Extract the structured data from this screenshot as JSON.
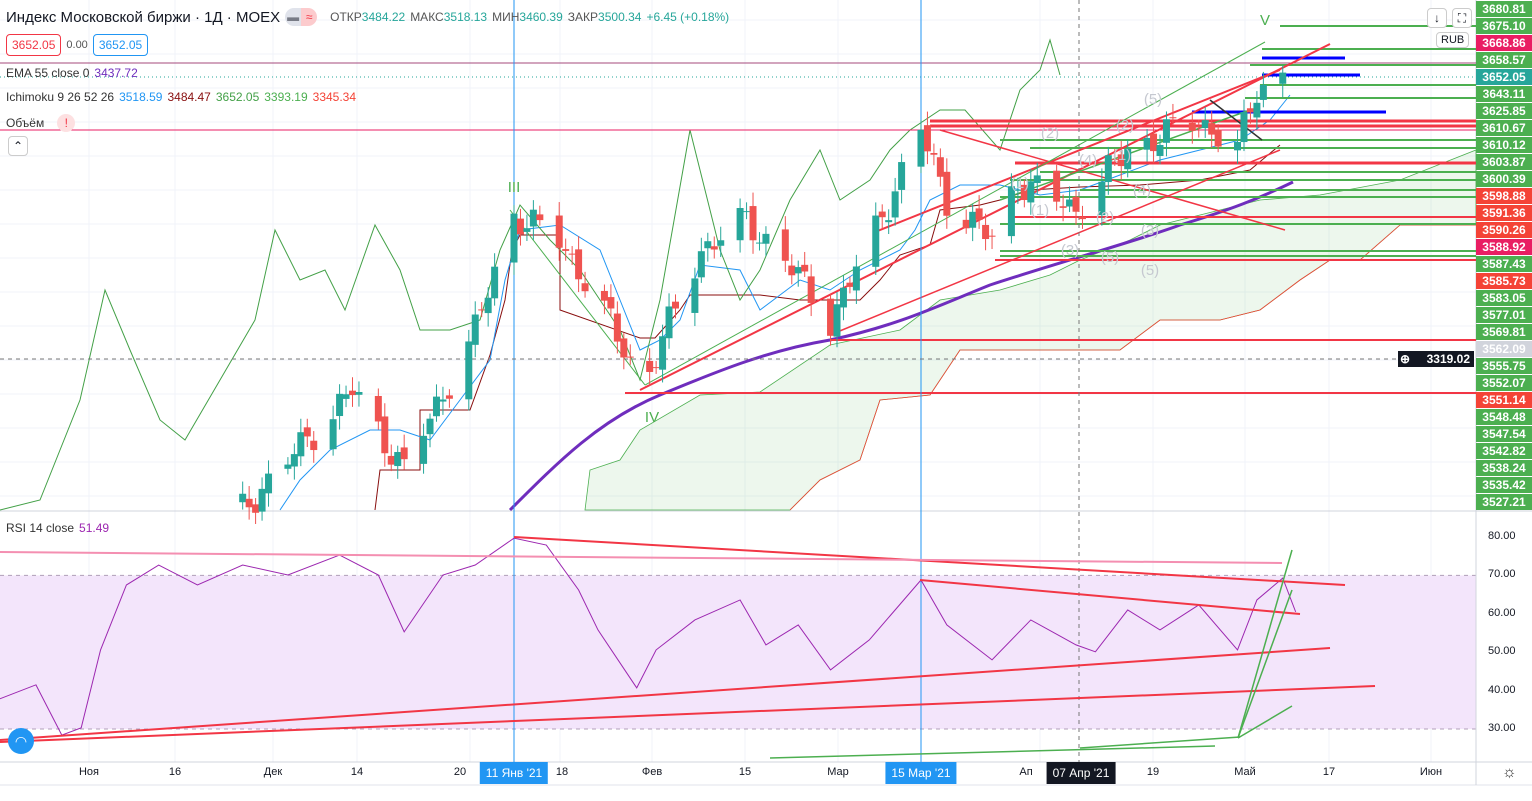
{
  "header": {
    "title": "Индекс Московской биржи · 1Д · MOEX",
    "open_label": "ОТКР",
    "open": "3484.22",
    "high_label": "МАКС",
    "high": "3518.13",
    "low_label": "МИН",
    "low": "3460.39",
    "close_label": "ЗАКР",
    "close": "3500.34",
    "change": "+6.45 (+0.18%)",
    "bid": "3652.05",
    "spread": "0.00",
    "ask": "3652.05"
  },
  "indicators": {
    "ema_label": "EMA 55 close 0",
    "ema_value": "3437.72",
    "ichimoku_label": "Ichimoku 9 26 52 26",
    "ichimoku_values": [
      "3518.59",
      "3484.47",
      "3652.05",
      "3393.19",
      "3345.34"
    ],
    "volume_label": "Объём",
    "volume_warning": "!",
    "rsi_label": "RSI 14 close",
    "rsi_value": "51.49"
  },
  "currency": "RUB",
  "colors": {
    "up": "#26a69a",
    "down": "#ef5350",
    "ema": "#6f2dbd",
    "tenkan": "#2196f3",
    "kijun": "#880e0e",
    "chikou": "#43a047",
    "rsi": "#9c27b0",
    "trend_red": "#f23645",
    "trend_green": "#4caf50"
  },
  "price_axis_labels": [
    {
      "v": "3680.81",
      "c": "#4caf50"
    },
    {
      "v": "3675.10",
      "c": "#4caf50"
    },
    {
      "v": "3668.86",
      "c": "#e91e63"
    },
    {
      "v": "3658.57",
      "c": "#4caf50"
    },
    {
      "v": "3652.05",
      "c": "#26a69a"
    },
    {
      "v": "3643.11",
      "c": "#4caf50"
    },
    {
      "v": "3625.85",
      "c": "#4caf50"
    },
    {
      "v": "3610.67",
      "c": "#4caf50"
    },
    {
      "v": "3610.12",
      "c": "#4caf50"
    },
    {
      "v": "3603.87",
      "c": "#4caf50"
    },
    {
      "v": "3600.39",
      "c": "#4caf50"
    },
    {
      "v": "3598.88",
      "c": "#f44336"
    },
    {
      "v": "3591.36",
      "c": "#f44336"
    },
    {
      "v": "3590.26",
      "c": "#f44336"
    },
    {
      "v": "3588.92",
      "c": "#e91e63"
    },
    {
      "v": "3587.43",
      "c": "#4caf50"
    },
    {
      "v": "3585.73",
      "c": "#f44336"
    },
    {
      "v": "3583.05",
      "c": "#4caf50"
    },
    {
      "v": "3577.01",
      "c": "#4caf50"
    },
    {
      "v": "3569.81",
      "c": "#4caf50"
    },
    {
      "v": "3562.09",
      "c": "#d1d4dc"
    },
    {
      "v": "3555.75",
      "c": "#4caf50"
    },
    {
      "v": "3552.07",
      "c": "#4caf50"
    },
    {
      "v": "3551.14",
      "c": "#f44336"
    },
    {
      "v": "3548.48",
      "c": "#4caf50"
    },
    {
      "v": "3547.54",
      "c": "#4caf50"
    },
    {
      "v": "3542.82",
      "c": "#4caf50"
    },
    {
      "v": "3538.24",
      "c": "#4caf50"
    },
    {
      "v": "3535.42",
      "c": "#4caf50"
    },
    {
      "v": "3527.21",
      "c": "#4caf50"
    }
  ],
  "crosshair_price": "3319.02",
  "rsi_axis": [
    "80.00",
    "70.00",
    "60.00",
    "50.00",
    "40.00",
    "30.00"
  ],
  "time_axis": [
    "Ноя",
    "16",
    "Дек",
    "14",
    "20",
    "18",
    "Фев",
    "15",
    "Мар",
    "Ап",
    "19",
    "Май",
    "17",
    "Июн"
  ],
  "time_highlights": [
    "11 Янв '21",
    "15 Мар '21",
    "07 Апр '21"
  ],
  "wave_labels": [
    "III",
    "IV",
    "V",
    "(1)",
    "(2)",
    "(3)",
    "(4)",
    "(5)",
    "(1)",
    "(2)",
    "(3)",
    "(4)",
    "(5)",
    "(1)",
    "(2)",
    "(5)"
  ],
  "chart_data": {
    "type": "candlestick",
    "close_keypoints": [
      [
        "2020-11-30",
        3141
      ],
      [
        "2020-12-17",
        3282
      ],
      [
        "2020-12-25",
        3188
      ],
      [
        "2021-01-05",
        3353
      ],
      [
        "2021-01-11",
        3489
      ],
      [
        "2021-01-18",
        3460
      ],
      [
        "2021-01-24",
        3389
      ],
      [
        "2021-01-31",
        3288
      ],
      [
        "2021-02-09",
        3448
      ],
      [
        "2021-02-16",
        3483
      ],
      [
        "2021-02-22",
        3436
      ],
      [
        "2021-03-01",
        3365
      ],
      [
        "2021-03-08",
        3471
      ],
      [
        "2021-03-15",
        3589
      ],
      [
        "2021-03-19",
        3507
      ],
      [
        "2021-03-26",
        3460
      ],
      [
        "2021-03-30",
        3530
      ],
      [
        "2021-04-08",
        3495
      ],
      [
        "2021-04-16",
        3566
      ],
      [
        "2021-04-27",
        3601
      ],
      [
        "2021-05-03",
        3566
      ],
      [
        "2021-05-06",
        3637
      ],
      [
        "2021-05-10",
        3654
      ]
    ],
    "rsi_keypoints": [
      [
        "2020-10-23",
        37.6
      ],
      [
        "2020-10-29",
        41.5
      ],
      [
        "2020-11-02",
        28.4
      ],
      [
        "2020-11-05",
        30.3
      ],
      [
        "2020-11-08",
        50.6
      ],
      [
        "2020-11-12",
        67.5
      ],
      [
        "2020-11-17",
        72.7
      ],
      [
        "2020-11-23",
        67.5
      ],
      [
        "2020-11-30",
        72.7
      ],
      [
        "2020-12-07",
        70.1
      ],
      [
        "2020-12-15",
        75.3
      ],
      [
        "2020-12-21",
        70.1
      ],
      [
        "2020-12-25",
        55.3
      ],
      [
        "2020-12-31",
        70.1
      ],
      [
        "2021-01-05",
        72.7
      ],
      [
        "2021-01-11",
        79.7
      ],
      [
        "2021-01-16",
        77.9
      ],
      [
        "2021-01-21",
        66.2
      ],
      [
        "2021-01-24",
        55.8
      ],
      [
        "2021-01-30",
        40.7
      ],
      [
        "2021-02-02",
        50.6
      ],
      [
        "2021-02-08",
        58.4
      ],
      [
        "2021-02-15",
        63.6
      ],
      [
        "2021-02-19",
        51.9
      ],
      [
        "2021-02-24",
        57.1
      ],
      [
        "2021-03-01",
        45.4
      ],
      [
        "2021-03-07",
        53.2
      ],
      [
        "2021-03-15",
        68.8
      ],
      [
        "2021-03-19",
        57.1
      ],
      [
        "2021-03-26",
        48.0
      ],
      [
        "2021-04-01",
        58.4
      ],
      [
        "2021-04-08",
        51.9
      ],
      [
        "2021-04-11",
        50.1
      ],
      [
        "2021-04-16",
        61.0
      ],
      [
        "2021-04-21",
        55.8
      ],
      [
        "2021-04-27",
        62.3
      ],
      [
        "2021-05-03",
        50.6
      ],
      [
        "2021-05-06",
        63.6
      ],
      [
        "2021-05-10",
        69.3
      ],
      [
        "2021-05-12",
        60.5
      ]
    ],
    "rsi_bands": [
      30,
      70
    ],
    "ylim_rsi": [
      22,
      86
    ]
  }
}
